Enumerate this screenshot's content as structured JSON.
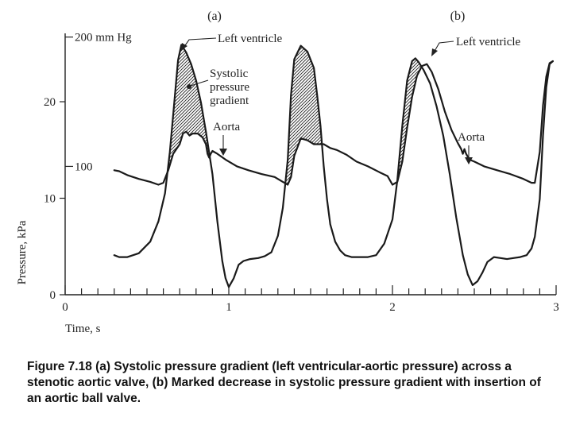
{
  "chart_data": {
    "type": "line",
    "panel_labels": [
      "(a)",
      "(b)"
    ],
    "xlabel": "Time, s",
    "ylabel": "Pressure, kPa",
    "xlim": [
      0,
      3
    ],
    "ylim": [
      0,
      27
    ],
    "x_ticks": [
      0,
      1,
      2,
      3
    ],
    "y_ticks": [
      0,
      10,
      20
    ],
    "mmhg_ticks": [
      {
        "value": 13.3,
        "label": "100"
      },
      {
        "value": 26.7,
        "label": "200 mm Hg"
      }
    ],
    "annotations": {
      "left_ventricle_a": "Left ventricle",
      "gradient": [
        "Systolic",
        "pressure",
        "gradient"
      ],
      "aorta_a": "Aorta",
      "left_ventricle_b": "Left ventricle",
      "aorta_b": "Aorta"
    },
    "series": [
      {
        "name": "Left ventricle",
        "x": [
          0.3,
          0.33,
          0.38,
          0.45,
          0.52,
          0.57,
          0.61,
          0.64,
          0.67,
          0.69,
          0.71,
          0.74,
          0.77,
          0.8,
          0.83,
          0.86,
          0.9,
          0.93,
          0.96,
          0.98,
          1.0,
          1.03,
          1.06,
          1.09,
          1.13,
          1.18,
          1.22,
          1.26,
          1.3,
          1.33,
          1.36,
          1.38,
          1.4,
          1.44,
          1.48,
          1.52,
          1.54,
          1.56,
          1.58,
          1.6,
          1.62,
          1.65,
          1.68,
          1.71,
          1.75,
          1.8,
          1.85,
          1.9,
          1.95,
          2.0,
          2.03,
          2.06,
          2.09,
          2.12,
          2.14,
          2.16,
          2.19,
          2.23,
          2.27,
          2.31,
          2.35,
          2.39,
          2.43,
          2.46,
          2.49,
          2.52,
          2.55,
          2.58,
          2.62,
          2.66,
          2.7,
          2.74,
          2.78,
          2.82,
          2.85,
          2.87,
          2.9,
          2.92,
          2.94,
          2.96,
          2.98
        ],
        "y": [
          4.1,
          3.9,
          3.9,
          4.3,
          5.5,
          7.6,
          10.5,
          14.8,
          20.5,
          24.3,
          25.9,
          25.1,
          23.9,
          22.2,
          19.9,
          16.9,
          12.5,
          7.6,
          3.5,
          1.7,
          0.8,
          1.7,
          3.1,
          3.5,
          3.7,
          3.8,
          4.0,
          4.4,
          6.1,
          9.0,
          14.0,
          20.7,
          24.4,
          25.8,
          25.2,
          23.5,
          20.7,
          17.5,
          13.3,
          9.9,
          7.3,
          5.5,
          4.6,
          4.1,
          3.9,
          3.9,
          3.9,
          4.1,
          5.3,
          7.8,
          11.9,
          17.5,
          22.2,
          24.2,
          24.5,
          24.1,
          23.3,
          21.9,
          19.5,
          16.5,
          12.5,
          8.0,
          4.1,
          2.1,
          1.0,
          1.4,
          2.3,
          3.4,
          3.9,
          3.8,
          3.7,
          3.8,
          3.9,
          4.1,
          4.8,
          6.0,
          9.9,
          16.5,
          21.5,
          23.9,
          24.2
        ]
      },
      {
        "name": "Aorta",
        "x": [
          0.3,
          0.33,
          0.38,
          0.45,
          0.52,
          0.57,
          0.6,
          0.63,
          0.66,
          0.7,
          0.72,
          0.74,
          0.76,
          0.78,
          0.81,
          0.84,
          0.86,
          0.87,
          0.88,
          0.89,
          0.9,
          0.93,
          0.98,
          1.05,
          1.12,
          1.2,
          1.28,
          1.33,
          1.36,
          1.38,
          1.4,
          1.44,
          1.48,
          1.52,
          1.55,
          1.58,
          1.62,
          1.66,
          1.72,
          1.78,
          1.85,
          1.92,
          1.97,
          2.0,
          2.03,
          2.06,
          2.09,
          2.12,
          2.15,
          2.18,
          2.21,
          2.24,
          2.28,
          2.32,
          2.36,
          2.4,
          2.42,
          2.43,
          2.44,
          2.45,
          2.47,
          2.5,
          2.56,
          2.64,
          2.72,
          2.8,
          2.85,
          2.87,
          2.9,
          2.92,
          2.94,
          2.96,
          2.98
        ],
        "y": [
          12.9,
          12.8,
          12.4,
          12.0,
          11.7,
          11.4,
          11.6,
          12.9,
          14.6,
          15.6,
          16.7,
          16.9,
          16.5,
          16.7,
          16.7,
          16.3,
          15.6,
          14.6,
          14.2,
          14.6,
          14.9,
          14.6,
          14.0,
          13.3,
          12.9,
          12.5,
          12.2,
          11.7,
          11.4,
          12.2,
          14.4,
          16.2,
          16.0,
          15.6,
          15.6,
          15.6,
          15.2,
          15.0,
          14.5,
          13.8,
          13.3,
          12.7,
          12.3,
          11.4,
          11.7,
          13.8,
          17.3,
          20.5,
          22.7,
          23.7,
          23.9,
          23.1,
          21.3,
          19.0,
          17.1,
          15.7,
          15.1,
          14.6,
          15.1,
          14.6,
          14.0,
          13.8,
          13.3,
          12.9,
          12.5,
          12.0,
          11.6,
          11.6,
          14.8,
          19.6,
          22.6,
          24.0,
          24.2
        ]
      }
    ]
  },
  "caption": "Figure 7.18 (a) Systolic pressure gradient (left ventricular-aortic pressure) across a stenotic aortic valve, (b) Marked decrease in systolic pressure gradient with insertion of an aortic ball valve."
}
